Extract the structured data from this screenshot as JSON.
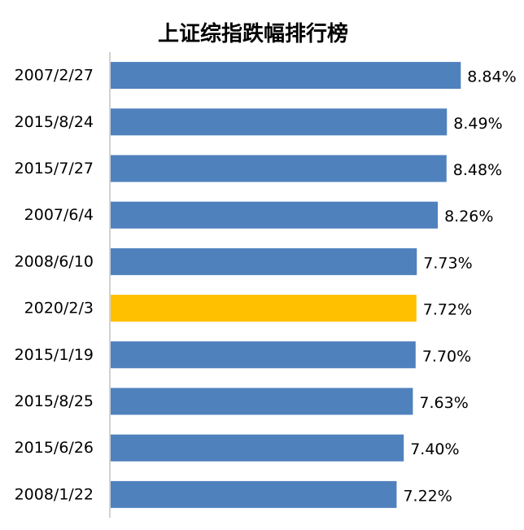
{
  "colors": {
    "default_bar": "#4F81BD",
    "highlight_bar": "#FFC000",
    "axis": "#A6A6A6"
  },
  "chart_data": {
    "type": "bar",
    "orientation": "horizontal",
    "title": "上证综指跌幅排行榜",
    "xlabel": "",
    "ylabel": "",
    "xlim": [
      0,
      9.45
    ],
    "grid": false,
    "legend": "none",
    "categories": [
      "2007/2/27",
      "2015/8/24",
      "2015/7/27",
      "2007/6/4",
      "2008/6/10",
      "2020/2/3",
      "2015/1/19",
      "2015/8/25",
      "2015/6/26",
      "2008/1/22"
    ],
    "values": [
      8.84,
      8.49,
      8.48,
      8.26,
      7.73,
      7.72,
      7.7,
      7.63,
      7.4,
      7.22
    ],
    "value_labels": [
      "8.84%",
      "8.49%",
      "8.48%",
      "8.26%",
      "7.73%",
      "7.72%",
      "7.70%",
      "7.63%",
      "7.40%",
      "7.22%"
    ],
    "highlighted_category": "2020/2/3"
  }
}
